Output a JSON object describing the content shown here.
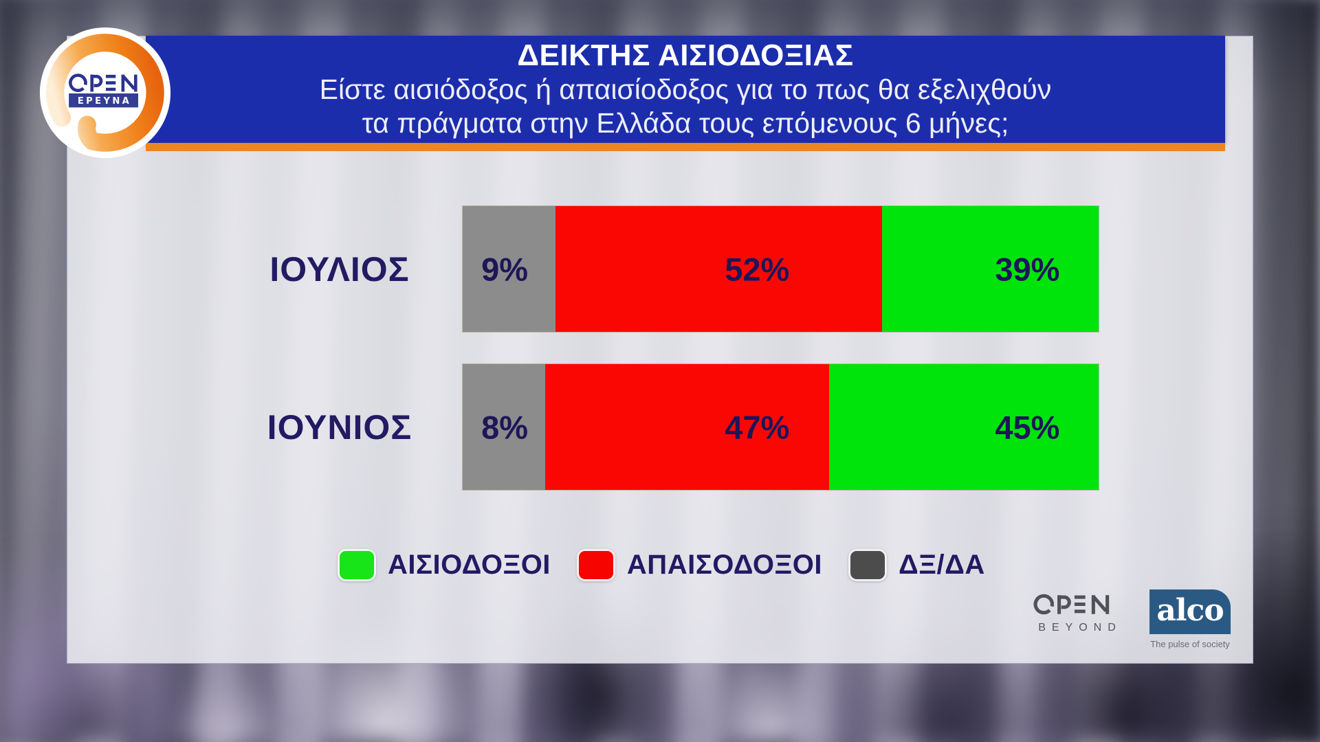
{
  "logo": {
    "brand": "OPEN",
    "label": "ΕΡΕΥΝΑ"
  },
  "header": {
    "title": "ΔΕΙΚΤΗΣ ΑΙΣΙΟΔΟΞΙΑΣ",
    "subtitle_line1": "Είστε αισιόδοξος ή απαισίοδοξος για το πως θα εξελιχθούν",
    "subtitle_line2": "τα πράγματα στην Ελλάδα τους επόμενους 6 μήνες;"
  },
  "colors": {
    "banner_blue": "#1c2dac",
    "underline_orange": "#f0851c",
    "text_navy": "#1d1658",
    "optimist_green": "#00e40b",
    "pessimist_red": "#fb0703",
    "dk_gray": "#8c8c8c",
    "legend_gray": "#4c4c4c"
  },
  "chart_data": {
    "type": "bar",
    "variant": "horizontal-stacked",
    "title": "ΔΕΙΚΤΗΣ ΑΙΣΙΟΔΟΞΙΑΣ",
    "question": "Είστε αισιόδοξος ή απαισίοδοξος για το πως θα εξελιχθούν τα πράγματα στην Ελλάδα τους επόμενους 6 μήνες;",
    "categories": [
      "ΙΟΥΛΙΟΣ",
      "ΙΟΥΝΙΟΣ"
    ],
    "series": [
      {
        "name": "ΔΞ/ΔΑ",
        "color": "#8c8c8c",
        "values": [
          9,
          8
        ]
      },
      {
        "name": "ΑΠΑΙΣΟΔΟΞΟΙ",
        "color": "#fb0703",
        "values": [
          52,
          47
        ]
      },
      {
        "name": "ΑΙΣΙΟΔΟΞΟΙ",
        "color": "#00e40b",
        "values": [
          39,
          45
        ]
      }
    ],
    "value_suffix": "%",
    "legend_position": "bottom",
    "rows": [
      {
        "label": "ΙΟΥΛΙΟΣ",
        "segments": [
          {
            "text": "9%",
            "value": 9,
            "color": "#8c8c8c",
            "width_pct": 14.6
          },
          {
            "text": "52%",
            "value": 52,
            "color": "#fb0703",
            "width_pct": 51.35
          },
          {
            "text": "39%",
            "value": 39,
            "color": "#00e40b",
            "width_pct": 34.05
          }
        ]
      },
      {
        "label": "ΙΟΥΝΙΟΣ",
        "segments": [
          {
            "text": "8%",
            "value": 8,
            "color": "#8c8c8c",
            "width_pct": 12.97
          },
          {
            "text": "47%",
            "value": 47,
            "color": "#fb0703",
            "width_pct": 44.65
          },
          {
            "text": "45%",
            "value": 45,
            "color": "#00e40b",
            "width_pct": 42.38
          }
        ]
      }
    ]
  },
  "legend": {
    "items": [
      {
        "label": "ΑΙΣΙΟΔΟΞΟΙ",
        "color": "#17e517"
      },
      {
        "label": "ΑΠΑΙΣΟΔΟΞΟΙ",
        "color": "#f60400"
      },
      {
        "label": "ΔΞ/ΔΑ",
        "color": "#4c4c4c"
      }
    ]
  },
  "footer": {
    "open_beyond_line1": "OPEN",
    "open_beyond_line2": "BEYOND",
    "alco_name": "alco",
    "alco_tagline": "The pulse of society"
  }
}
